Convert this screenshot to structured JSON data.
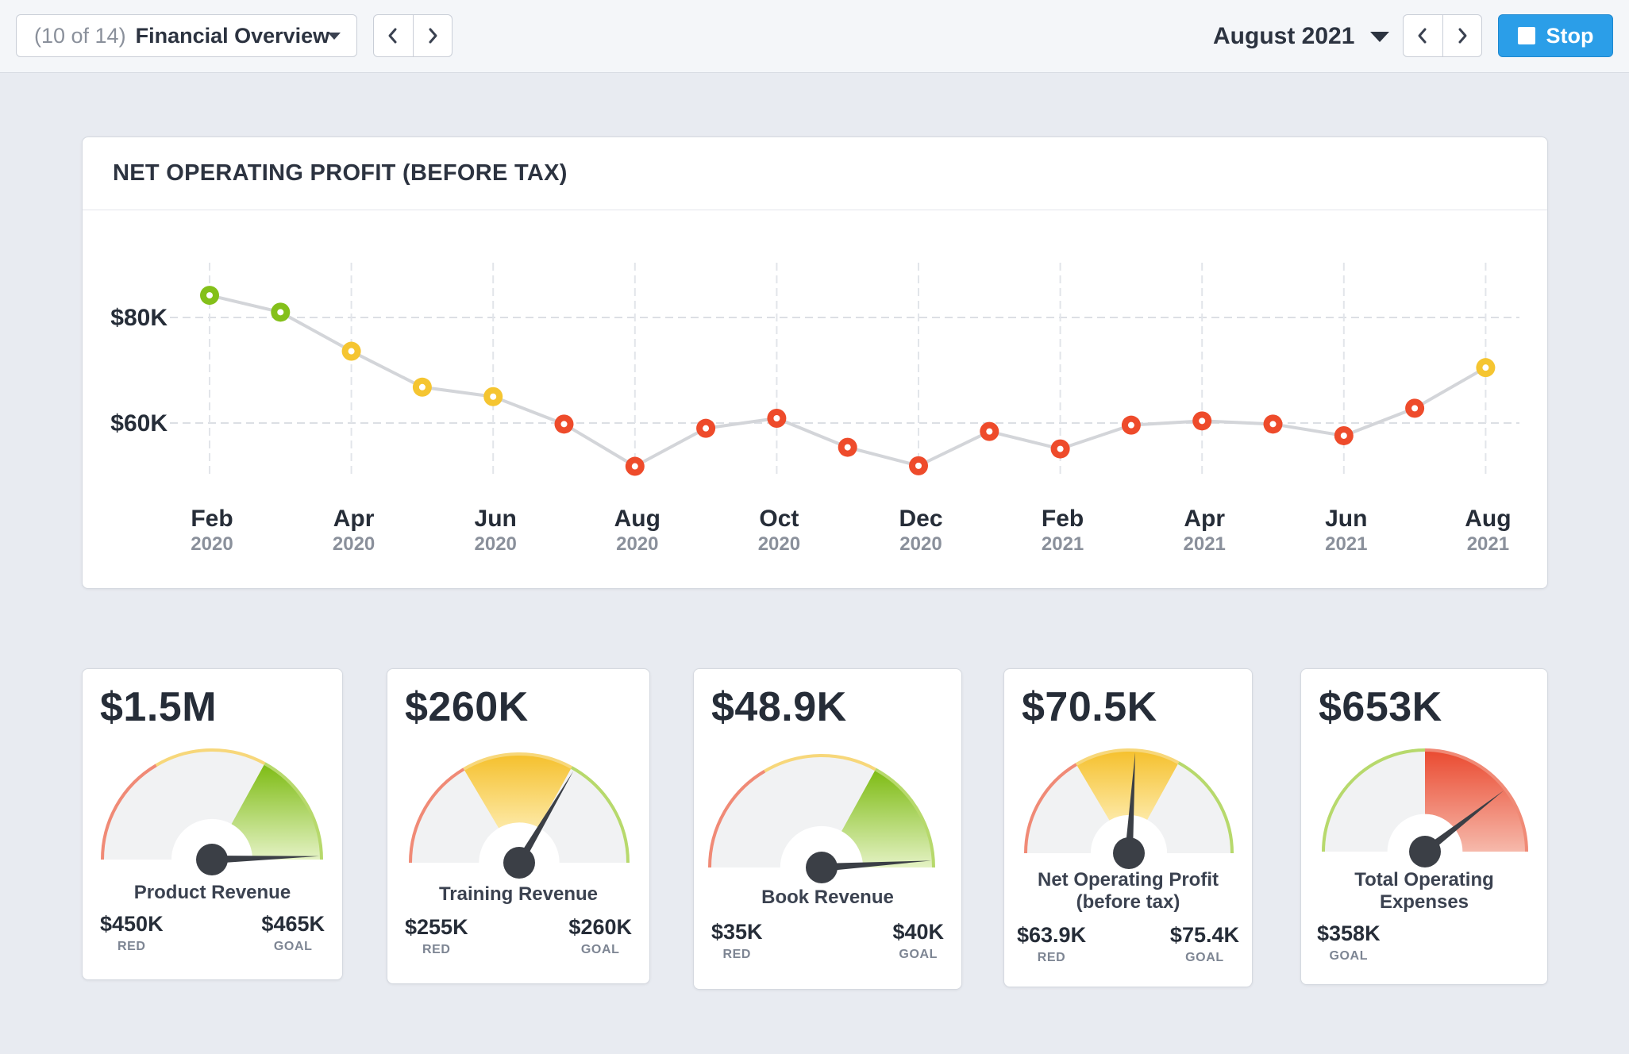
{
  "topbar": {
    "dashboard_count": "(10 of 14)",
    "dashboard_name": "Financial Overview",
    "month": "August 2021",
    "stop_label": "Stop"
  },
  "chart": {
    "title": "NET OPERATING PROFIT (BEFORE TAX)"
  },
  "chart_data": {
    "type": "line",
    "title": "NET OPERATING PROFIT (BEFORE TAX)",
    "xlabel": "",
    "ylabel": "",
    "y_ticks": [
      "$60K",
      "$80K"
    ],
    "y_tick_values": [
      60000,
      80000
    ],
    "x_tick_labels": [
      {
        "month": "Feb",
        "year": "2020"
      },
      {
        "month": "Apr",
        "year": "2020"
      },
      {
        "month": "Jun",
        "year": "2020"
      },
      {
        "month": "Aug",
        "year": "2020"
      },
      {
        "month": "Oct",
        "year": "2020"
      },
      {
        "month": "Dec",
        "year": "2020"
      },
      {
        "month": "Feb",
        "year": "2021"
      },
      {
        "month": "Apr",
        "year": "2021"
      },
      {
        "month": "Jun",
        "year": "2021"
      },
      {
        "month": "Aug",
        "year": "2021"
      }
    ],
    "ylim": [
      50000,
      84000
    ],
    "grid": true,
    "series": [
      {
        "x": [
          "2020-02",
          "2020-03",
          "2020-04",
          "2020-05",
          "2020-06",
          "2020-07",
          "2020-08",
          "2020-09",
          "2020-10",
          "2020-11",
          "2020-12",
          "2021-01",
          "2021-02",
          "2021-03",
          "2021-04",
          "2021-05",
          "2021-06",
          "2021-07",
          "2021-08"
        ],
        "values": [
          84200,
          81000,
          73600,
          66800,
          65000,
          59800,
          51800,
          59000,
          60900,
          55400,
          51900,
          58400,
          55100,
          59600,
          60400,
          59800,
          57600,
          62800,
          70500
        ],
        "status": [
          "good",
          "good",
          "warn",
          "warn",
          "warn",
          "bad",
          "bad",
          "bad",
          "bad",
          "bad",
          "bad",
          "bad",
          "bad",
          "bad",
          "bad",
          "bad",
          "bad",
          "bad",
          "warn"
        ]
      }
    ]
  },
  "colors": {
    "good": "#84c01a",
    "warn": "#f5c531",
    "bad": "#ee4b2b",
    "line": "#d3d5d9",
    "accent": "#2b9ee8"
  },
  "kpis": [
    {
      "value": "$1.5M",
      "label": "Product Revenue",
      "red": "$450K",
      "red_tag": "RED",
      "goal": "$465K",
      "goal_tag": "GOAL",
      "needle_fraction": 0.99,
      "highlight": "green"
    },
    {
      "value": "$260K",
      "label": "Training Revenue",
      "red": "$255K",
      "red_tag": "RED",
      "goal": "$260K",
      "goal_tag": "GOAL",
      "needle_fraction": 0.67,
      "highlight": "yellow"
    },
    {
      "value": "$48.9K",
      "label": "Book Revenue",
      "red": "$35K",
      "red_tag": "RED",
      "goal": "$40K",
      "goal_tag": "GOAL",
      "needle_fraction": 0.98,
      "highlight": "green"
    },
    {
      "value": "$70.5K",
      "label_lines": [
        "Net Operating Profit",
        "(before tax)"
      ],
      "red": "$63.9K",
      "red_tag": "RED",
      "goal": "$75.4K",
      "goal_tag": "GOAL",
      "needle_fraction": 0.52,
      "highlight": "yellow"
    },
    {
      "value": "$653K",
      "label_lines": [
        "Total Operating",
        "Expenses"
      ],
      "goal": "$358K",
      "goal_tag": "GOAL",
      "needle_fraction": 0.79,
      "highlight": "red"
    }
  ]
}
